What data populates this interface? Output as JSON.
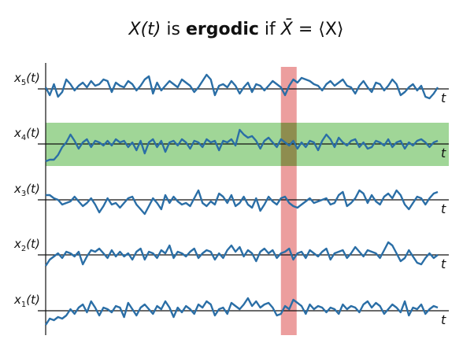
{
  "title": {
    "prefix": "X(t)",
    "is_text": " is ",
    "bold_word": "ergodic",
    "if_text": " if ",
    "lhs": "X̄",
    "equals": " = ",
    "rhs": "⟨X⟩"
  },
  "colors": {
    "signal": "#2a6ea6",
    "axis": "#111111",
    "time_band": "#e98d8d",
    "ensemble_band": "#8fcf85"
  },
  "time_axis_label": "t",
  "highlight": {
    "time_average_row": 4,
    "ensemble_slice_fraction": 0.62
  },
  "rows": [
    {
      "id": 5,
      "label_base": "x",
      "label_sub": "5",
      "label_tail": "(t)",
      "values": [
        0.1,
        -0.4,
        0.3,
        -0.5,
        -0.2,
        0.6,
        0.3,
        -0.1,
        0.2,
        0.4,
        0.1,
        0.5,
        0.2,
        0.3,
        0.6,
        0.5,
        -0.2,
        0.4,
        0.2,
        0.1,
        0.5,
        0.3,
        -0.1,
        0.2,
        0.6,
        0.8,
        -0.3,
        0.4,
        -0.1,
        0.2,
        0.5,
        0.3,
        0.1,
        0.6,
        0.4,
        0.2,
        -0.2,
        0.1,
        0.5,
        0.9,
        0.6,
        -0.4,
        0.2,
        0.3,
        0.1,
        0.5,
        0.2,
        -0.3,
        0.1,
        0.4,
        -0.2,
        0.3,
        0.2,
        -0.1,
        0.2,
        0.5,
        0.3,
        0.1,
        -0.4,
        0.2,
        0.6,
        0.4,
        0.7,
        0.6,
        0.5,
        0.3,
        0.2,
        -0.1,
        0.3,
        0.5,
        0.2,
        0.4,
        0.6,
        0.2,
        0.1,
        -0.3,
        0.2,
        0.5,
        0.1,
        -0.2,
        0.4,
        0.3,
        -0.1,
        0.2,
        0.6,
        0.3,
        -0.4,
        -0.2,
        0.1,
        0.3,
        -0.1,
        0.2,
        -0.5,
        -0.6,
        -0.3,
        0.1
      ]
    },
    {
      "id": 4,
      "label_base": "x",
      "label_sub": "4",
      "label_tail": "(t)",
      "values": [
        -1.1,
        -1.0,
        -1.0,
        -0.7,
        -0.2,
        0.1,
        0.6,
        0.2,
        -0.3,
        0.1,
        0.3,
        -0.2,
        0.2,
        0.1,
        -0.1,
        0.2,
        -0.1,
        0.3,
        0.1,
        0.2,
        -0.2,
        0.1,
        -0.4,
        0.2,
        -0.6,
        0.1,
        0.3,
        -0.2,
        0.2,
        -0.5,
        0.1,
        0.2,
        -0.1,
        0.3,
        0.1,
        -0.3,
        0.2,
        0.1,
        -0.2,
        0.3,
        0.1,
        0.2,
        -0.4,
        0.2,
        0.1,
        0.3,
        -0.1,
        0.9,
        0.6,
        0.4,
        0.5,
        0.2,
        -0.3,
        0.2,
        0.4,
        0.1,
        -0.2,
        0.3,
        0.1,
        -0.1,
        0.2,
        -0.3,
        0.1,
        -0.2,
        0.2,
        0.1,
        -0.4,
        0.2,
        0.6,
        0.3,
        -0.2,
        0.4,
        0.1,
        -0.1,
        0.2,
        0.3,
        -0.2,
        0.1,
        -0.3,
        -0.2,
        0.2,
        0.1,
        -0.1,
        0.3,
        -0.2,
        0.1,
        0.2,
        -0.3,
        0.1,
        -0.1,
        0.2,
        0.3,
        0.1,
        -0.2,
        0.1,
        0.2
      ]
    },
    {
      "id": 3,
      "label_base": "x",
      "label_sub": "3",
      "label_tail": "(t)",
      "values": [
        0.3,
        0.3,
        0.1,
        0.0,
        -0.3,
        -0.2,
        -0.1,
        0.2,
        -0.1,
        -0.4,
        -0.2,
        0.1,
        -0.3,
        -0.8,
        -0.4,
        0.1,
        -0.3,
        -0.2,
        -0.5,
        -0.2,
        0.1,
        0.2,
        -0.3,
        -0.6,
        -0.9,
        -0.4,
        0.1,
        -0.2,
        -0.6,
        0.3,
        -0.2,
        0.2,
        -0.1,
        -0.3,
        -0.2,
        -0.4,
        0.1,
        0.6,
        -0.2,
        -0.4,
        -0.1,
        -0.3,
        0.4,
        0.2,
        -0.2,
        0.3,
        -0.4,
        -0.2,
        0.2,
        -0.3,
        -0.5,
        0.1,
        -0.7,
        -0.3,
        0.2,
        -0.1,
        -0.3,
        0.1,
        0.2,
        -0.2,
        -0.4,
        -0.5,
        -0.3,
        -0.1,
        0.1,
        -0.2,
        -0.1,
        0.0,
        0.1,
        -0.3,
        -0.2,
        0.3,
        0.5,
        -0.4,
        -0.2,
        0.1,
        0.6,
        0.4,
        -0.2,
        0.3,
        -0.1,
        -0.3,
        0.2,
        0.4,
        0.1,
        0.6,
        0.3,
        -0.3,
        -0.6,
        -0.2,
        0.2,
        0.1,
        -0.3,
        0.1,
        0.4,
        0.5
      ]
    },
    {
      "id": 2,
      "label_base": "x",
      "label_sub": "2",
      "label_tail": "(t)",
      "values": [
        -0.7,
        -0.3,
        -0.1,
        0.1,
        -0.2,
        0.2,
        0.1,
        -0.1,
        0.2,
        -0.6,
        -0.1,
        0.3,
        0.2,
        0.4,
        0.1,
        -0.2,
        0.3,
        -0.1,
        0.2,
        -0.1,
        0.1,
        -0.3,
        0.2,
        0.4,
        -0.3,
        0.2,
        0.1,
        -0.2,
        0.3,
        0.1,
        0.6,
        -0.2,
        0.2,
        0.1,
        -0.1,
        0.2,
        0.4,
        -0.2,
        0.1,
        0.3,
        0.2,
        -0.3,
        0.1,
        -0.2,
        0.3,
        0.6,
        0.2,
        0.5,
        -0.1,
        0.3,
        0.1,
        -0.4,
        0.2,
        0.4,
        0.1,
        0.3,
        -0.2,
        0.1,
        0.2,
        0.4,
        -0.3,
        0.1,
        0.2,
        -0.2,
        0.3,
        0.1,
        -0.1,
        0.2,
        0.4,
        -0.3,
        0.1,
        0.2,
        0.3,
        -0.2,
        0.1,
        0.5,
        0.2,
        -0.1,
        0.3,
        0.2,
        0.1,
        -0.2,
        0.3,
        0.8,
        0.6,
        0.1,
        -0.4,
        -0.2,
        0.3,
        -0.1,
        -0.5,
        -0.6,
        -0.2,
        0.1,
        -0.2,
        0.0
      ]
    },
    {
      "id": 1,
      "label_base": "x",
      "label_sub": "1",
      "label_tail": "(t)",
      "values": [
        -0.9,
        -0.5,
        -0.6,
        -0.4,
        -0.5,
        -0.3,
        0.1,
        -0.2,
        0.2,
        0.4,
        -0.1,
        0.6,
        0.2,
        -0.3,
        0.2,
        0.1,
        -0.1,
        0.3,
        0.2,
        -0.4,
        0.5,
        0.1,
        -0.3,
        0.2,
        0.4,
        0.1,
        -0.2,
        0.3,
        0.1,
        0.6,
        0.2,
        -0.4,
        0.2,
        -0.1,
        0.3,
        0.1,
        -0.2,
        0.4,
        0.2,
        0.6,
        0.4,
        -0.3,
        0.1,
        0.2,
        -0.2,
        0.5,
        0.3,
        0.1,
        0.4,
        0.8,
        0.3,
        0.6,
        0.2,
        0.4,
        0.5,
        0.2,
        -0.3,
        -0.2,
        0.3,
        0.1,
        0.7,
        0.5,
        0.3,
        -0.2,
        0.4,
        0.1,
        0.3,
        0.2,
        -0.1,
        0.2,
        0.1,
        -0.2,
        0.4,
        0.1,
        0.3,
        0.2,
        -0.1,
        0.4,
        0.6,
        0.2,
        0.5,
        0.3,
        -0.2,
        0.1,
        0.4,
        0.2,
        -0.1,
        0.6,
        -0.3,
        0.2,
        0.1,
        0.4,
        -0.2,
        0.1,
        0.3,
        0.2
      ]
    }
  ]
}
